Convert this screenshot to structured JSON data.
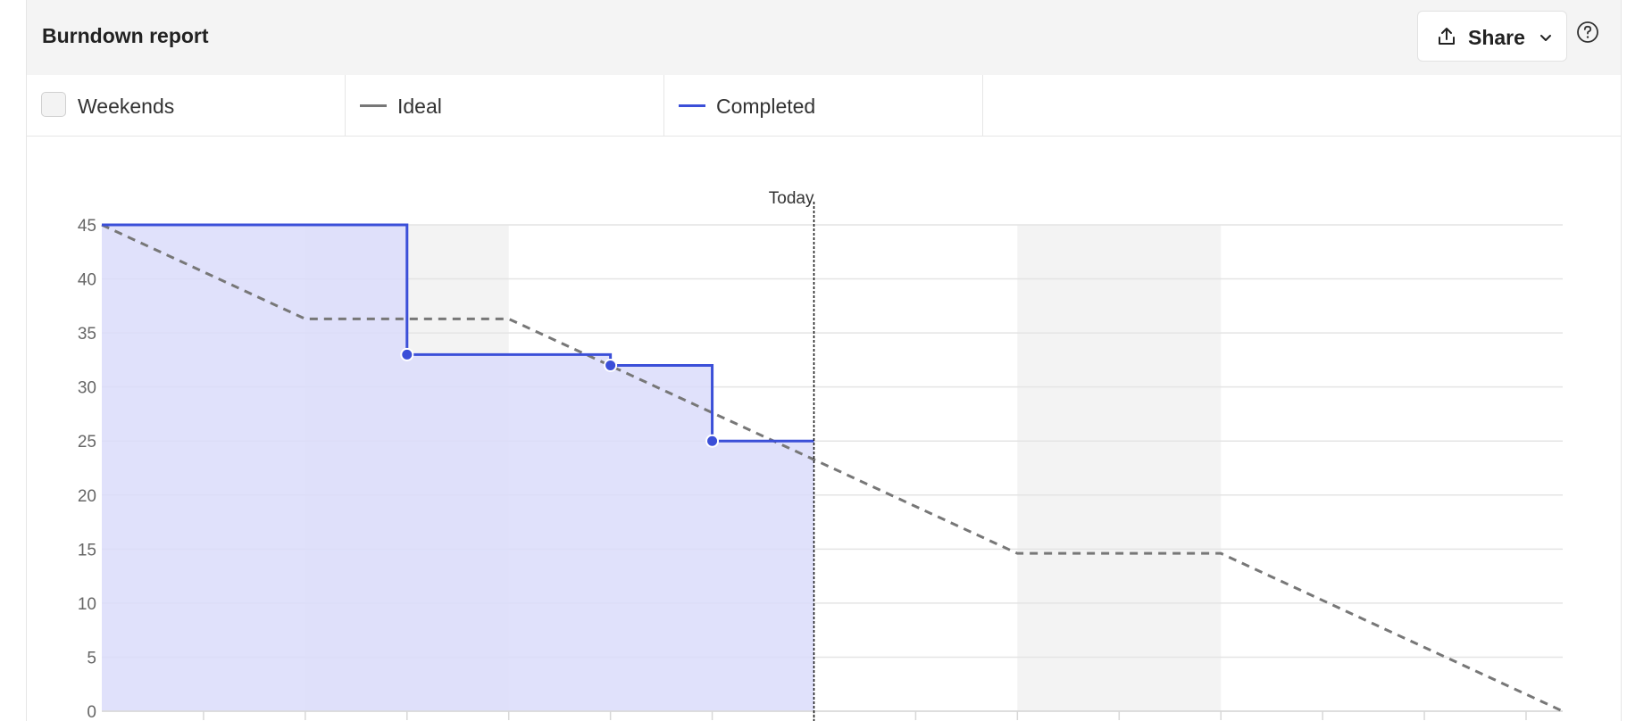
{
  "header": {
    "title": "Burndown report",
    "share_label": "Share"
  },
  "legend": {
    "weekends_label": "Weekends",
    "ideal_label": "Ideal",
    "completed_label": "Completed"
  },
  "colors": {
    "ideal": "#777777",
    "completed": "#3b4fd8",
    "completed_fill": "#dadcfa",
    "weekend_band": "#f3f3f3",
    "today_line": "#111111"
  },
  "chart_data": {
    "type": "line",
    "today_label": "Today",
    "y_ticks": [
      "0",
      "5",
      "10",
      "15",
      "20",
      "25",
      "30",
      "35",
      "40",
      "45"
    ],
    "ylim": [
      0,
      45
    ],
    "xlim": [
      0,
      14.36
    ],
    "today_x": 7,
    "weekend_ranges": [
      [
        2,
        4
      ],
      [
        9,
        11
      ]
    ],
    "series": [
      {
        "name": "Ideal",
        "style": "dashed",
        "x": [
          0,
          2,
          4,
          9,
          11,
          14.36
        ],
        "y": [
          45,
          36.3,
          36.3,
          14.6,
          14.6,
          0
        ]
      },
      {
        "name": "Completed",
        "style": "step",
        "x": [
          0,
          3,
          3,
          5,
          5,
          6,
          6,
          7
        ],
        "y": [
          45,
          45,
          33,
          33,
          32,
          32,
          25,
          25
        ],
        "markers": [
          {
            "x": 3,
            "y": 33
          },
          {
            "x": 5,
            "y": 32
          },
          {
            "x": 6,
            "y": 25
          }
        ]
      }
    ]
  }
}
